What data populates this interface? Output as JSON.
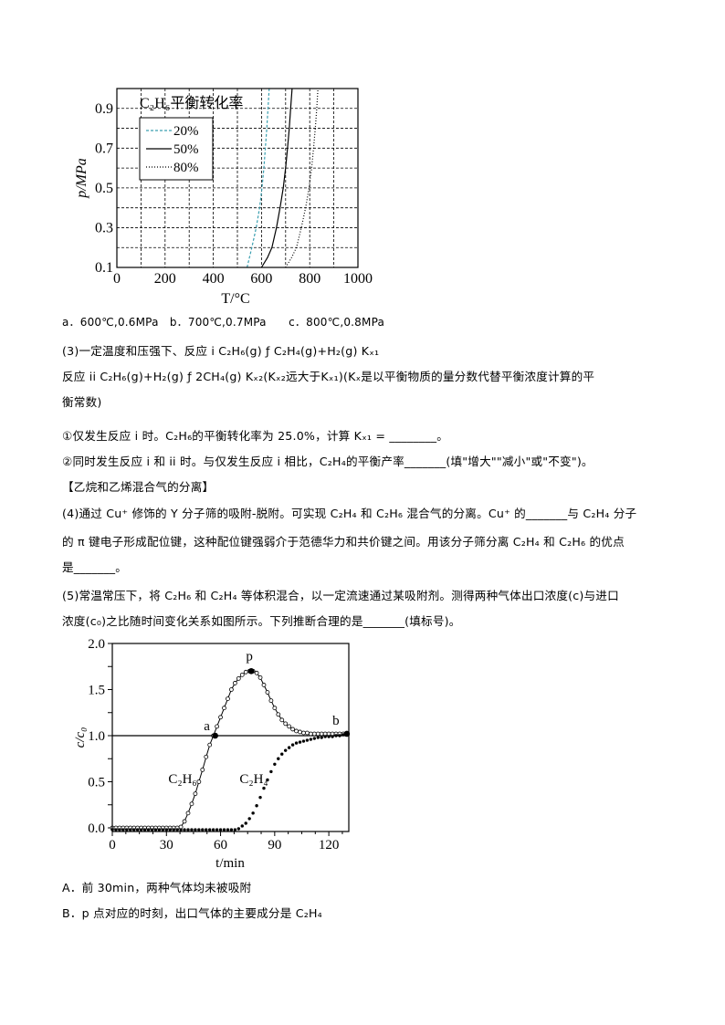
{
  "lines": {
    "options_q2": "a．600℃,0.6MPa　b．700℃,0.7MPa　　c．800℃,0.8MPa",
    "q3_line1": "(3)一定温度和压强下、反应 i  C₂H₆(g) ƒ  C₂H₄(g)+H₂(g)   Kₓ₁",
    "q3_line2": "反应 ii  C₂H₆(g)+H₂(g) ƒ  2CH₄(g)   Kₓ₂(Kₓ₂远大于Kₓ₁)(Kₓ是以平衡物质的量分数代替平衡浓度计算的平",
    "q3_line3": "衡常数)",
    "q3_sub1": "①仅发生反应 i 时。C₂H₆的平衡转化率为 25.0%，计算 Kₓ₁ = ________。",
    "q3_sub2": "②同时发生反应 i 和 ii 时。与仅发生反应 i 相比，C₂H₄的平衡产率_______(填\"增大\"\"减小\"或\"不变\")。",
    "section_title": "【乙烷和乙烯混合气的分离】",
    "q4_line1": "(4)通过 Cu⁺ 修饰的 Y 分子筛的吸附-脱附。可实现 C₂H₄ 和 C₂H₆ 混合气的分离。Cu⁺ 的_______与 C₂H₄ 分子",
    "q4_line2": "的 π 键电子形成配位键，这种配位键强弱介于范德华力和共价键之间。用该分子筛分离 C₂H₄ 和 C₂H₆ 的优点",
    "q4_line3": "是_______。",
    "q5_line1": "(5)常温常压下，将 C₂H₆ 和 C₂H₄ 等体积混合，以一定流速通过某吸附剂。测得两种气体出口浓度(c)与进口",
    "q5_line2": "浓度(c₀)之比随时间变化关系如图所示。下列推断合理的是_______(填标号)。",
    "option_a": "A．前 30min，两种气体均未被吸附",
    "option_b": "B．p 点对应的时刻，出口气体的主要成分是 C₂H₄"
  },
  "chart_data": [
    {
      "type": "line",
      "title": "C₂H₆平衡转化率",
      "xlabel": "T/°C",
      "ylabel": "p/MPa",
      "xlim": [
        0,
        1000
      ],
      "ylim": [
        0.1,
        1.0
      ],
      "xticks": [
        "0",
        "200",
        "400",
        "600",
        "800",
        "1000"
      ],
      "yticks": [
        "0.1",
        "0.3",
        "0.5",
        "0.7",
        "0.9"
      ],
      "grid": true,
      "legend_position": "top-left",
      "series": [
        {
          "name": "20%",
          "style": "dashed",
          "color": "#3a9fb0",
          "points": [
            [
              540,
              0.1
            ],
            [
              560,
              0.2
            ],
            [
              578,
              0.3
            ],
            [
              592,
              0.4
            ],
            [
              602,
              0.5
            ],
            [
              610,
              0.6
            ],
            [
              616,
              0.7
            ],
            [
              622,
              0.8
            ],
            [
              627,
              0.9
            ],
            [
              632,
              1.0
            ]
          ]
        },
        {
          "name": "50%",
          "style": "solid",
          "color": "#000000",
          "points": [
            [
              600,
              0.1
            ],
            [
              625,
              0.15
            ],
            [
              643,
              0.2
            ],
            [
              662,
              0.3
            ],
            [
              677,
              0.4
            ],
            [
              690,
              0.5
            ],
            [
              700,
              0.6
            ],
            [
              708,
              0.7
            ],
            [
              715,
              0.8
            ],
            [
              721,
              0.9
            ],
            [
              727,
              1.0
            ]
          ]
        },
        {
          "name": "80%",
          "style": "dotted",
          "color": "#000000",
          "points": [
            [
              700,
              0.1
            ],
            [
              725,
              0.15
            ],
            [
              745,
              0.2
            ],
            [
              765,
              0.3
            ],
            [
              783,
              0.4
            ],
            [
              797,
              0.5
            ],
            [
              808,
              0.6
            ],
            [
              816,
              0.7
            ],
            [
              823,
              0.8
            ],
            [
              829,
              0.9
            ],
            [
              834,
              1.0
            ]
          ]
        }
      ]
    },
    {
      "type": "scatter",
      "xlabel": "t/min",
      "ylabel": "c/c₀",
      "xlim": [
        0,
        131
      ],
      "ylim": [
        0,
        2.0
      ],
      "xticks": [
        "0",
        "30",
        "60",
        "90",
        "120"
      ],
      "yticks": [
        "0.0",
        "0.5",
        "1.0",
        "1.5",
        "2.0"
      ],
      "reference_line": 1.0,
      "x": [
        0,
        2,
        4,
        6,
        8,
        10,
        12,
        14,
        16,
        18,
        20,
        22,
        24,
        26,
        28,
        30,
        32,
        34,
        36,
        38,
        40,
        42,
        44,
        46,
        48,
        50,
        52,
        54,
        56,
        58,
        60,
        62,
        64,
        66,
        68,
        70,
        72,
        74,
        76,
        78,
        80,
        82,
        84,
        86,
        88,
        90,
        92,
        94,
        96,
        98,
        100,
        102,
        104,
        106,
        108,
        110,
        112,
        114,
        116,
        118,
        120,
        122,
        124,
        126,
        128,
        130
      ],
      "series": [
        {
          "name": "C₂H₆",
          "marker": "open-circle",
          "connected": true,
          "values": [
            0,
            0,
            0,
            0,
            0,
            0,
            0,
            0,
            0,
            0,
            0,
            0,
            0,
            0,
            0,
            0,
            0,
            0,
            0,
            0.01,
            0.07,
            0.16,
            0.26,
            0.37,
            0.5,
            0.63,
            0.77,
            0.9,
            1.0,
            1.1,
            1.2,
            1.3,
            1.4,
            1.5,
            1.57,
            1.62,
            1.66,
            1.69,
            1.7,
            1.7,
            1.68,
            1.63,
            1.55,
            1.47,
            1.38,
            1.3,
            1.23,
            1.17,
            1.13,
            1.1,
            1.07,
            1.05,
            1.04,
            1.03,
            1.03,
            1.02,
            1.02,
            1.02,
            1.02,
            1.02,
            1.02,
            1.02,
            1.02,
            1.02,
            1.02,
            1.02
          ]
        },
        {
          "name": "C₂H₄",
          "marker": "filled-dot",
          "connected": false,
          "values": [
            -0.02,
            -0.02,
            -0.02,
            -0.02,
            -0.02,
            -0.02,
            -0.02,
            -0.02,
            -0.02,
            -0.02,
            -0.02,
            -0.02,
            -0.02,
            -0.02,
            -0.02,
            -0.02,
            -0.02,
            -0.02,
            -0.02,
            -0.02,
            -0.02,
            -0.02,
            -0.02,
            -0.02,
            -0.02,
            -0.02,
            -0.02,
            -0.02,
            -0.02,
            -0.02,
            -0.02,
            -0.02,
            -0.02,
            -0.02,
            -0.02,
            -0.01,
            0.02,
            0.05,
            0.1,
            0.16,
            0.24,
            0.33,
            0.43,
            0.52,
            0.61,
            0.69,
            0.75,
            0.8,
            0.84,
            0.87,
            0.9,
            0.92,
            0.93,
            0.94,
            0.95,
            0.96,
            0.97,
            0.98,
            0.98,
            0.99,
            0.99,
            0.99,
            1.0,
            1.0,
            1.01,
            1.02
          ]
        }
      ],
      "annotations": [
        {
          "label": "a",
          "x": 57,
          "y": 1.0
        },
        {
          "label": "p",
          "x": 77,
          "y": 1.7
        },
        {
          "label": "b",
          "x": 130,
          "y": 1.02
        }
      ]
    }
  ]
}
